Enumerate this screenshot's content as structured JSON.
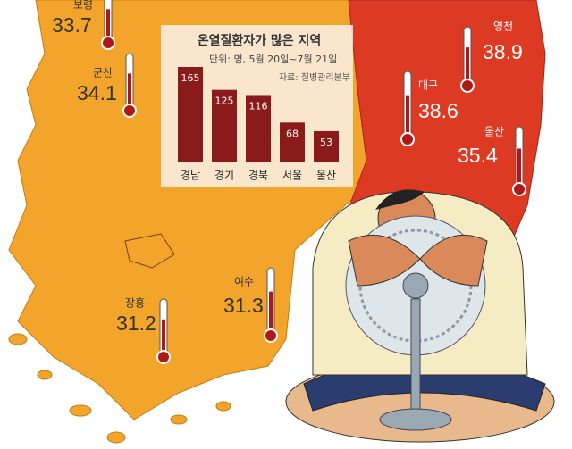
{
  "chart_data": {
    "type": "bar",
    "title": "온열질환자가 많은 지역",
    "subtitle": "단위: 명, 5월 20일~7월 21일",
    "source": "자료: 질병관리본부",
    "categories": [
      "경남",
      "경기",
      "경북",
      "서울",
      "울산"
    ],
    "values": [
      165,
      125,
      116,
      68,
      53
    ],
    "color": "#8b1a1a"
  },
  "cities": [
    {
      "name": "보령",
      "value": 33.7
    },
    {
      "name": "군산",
      "value": 34.1
    },
    {
      "name": "영천",
      "value": 38.9
    },
    {
      "name": "대구",
      "value": 38.6
    },
    {
      "name": "울산",
      "value": 35.4
    },
    {
      "name": "장흥",
      "value": 31.2
    },
    {
      "name": "여수",
      "value": 31.3
    }
  ]
}
